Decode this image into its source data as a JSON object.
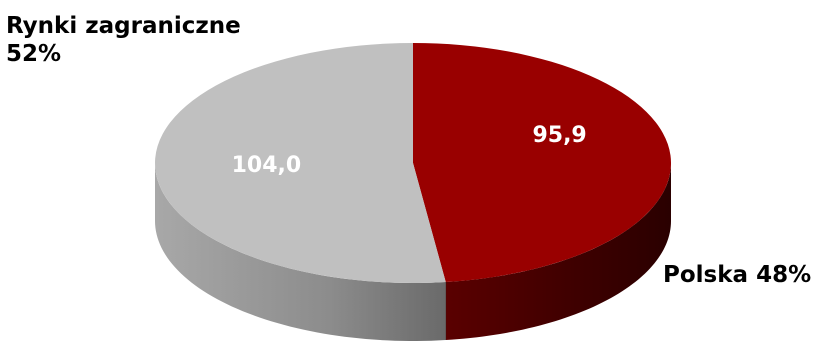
{
  "chart_data": {
    "type": "pie",
    "title": "",
    "slices": [
      {
        "label": "Polska",
        "value": 95.9,
        "value_label": "95,9",
        "percent_label": "48%",
        "color": "#990000",
        "side_color": "#3d0000"
      },
      {
        "label": "Rynki zagraniczne",
        "value": 104.0,
        "value_label": "104,0",
        "percent_label": "52%",
        "color": "#c0c0c0",
        "side_color": "#8a8a8a"
      }
    ],
    "style": "3d-tilted",
    "start_angle_deg": 0,
    "direction": "clockwise"
  }
}
